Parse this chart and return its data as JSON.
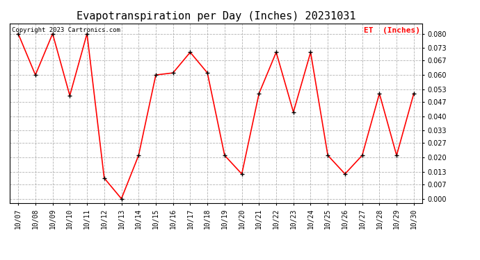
{
  "title": "Evapotranspiration per Day (Inches) 20231031",
  "copyright": "Copyright 2023 Cartronics.com",
  "legend_label": "ET  (Inches)",
  "dates": [
    "10/07",
    "10/08",
    "10/09",
    "10/10",
    "10/11",
    "10/12",
    "10/13",
    "10/14",
    "10/15",
    "10/16",
    "10/17",
    "10/18",
    "10/19",
    "10/20",
    "10/21",
    "10/22",
    "10/23",
    "10/24",
    "10/25",
    "10/26",
    "10/27",
    "10/28",
    "10/29",
    "10/30"
  ],
  "values": [
    0.08,
    0.06,
    0.08,
    0.05,
    0.08,
    0.01,
    0.0,
    0.021,
    0.06,
    0.061,
    0.071,
    0.061,
    0.021,
    0.012,
    0.051,
    0.071,
    0.042,
    0.071,
    0.021,
    0.012,
    0.021,
    0.051,
    0.021,
    0.051
  ],
  "line_color": "red",
  "marker_color": "black",
  "background_color": "white",
  "grid_color": "#aaaaaa",
  "yticks": [
    0.0,
    0.007,
    0.013,
    0.02,
    0.027,
    0.033,
    0.04,
    0.047,
    0.053,
    0.06,
    0.067,
    0.073,
    0.08
  ],
  "ylim": [
    -0.002,
    0.085
  ],
  "title_fontsize": 11,
  "tick_fontsize": 7,
  "copyright_fontsize": 6.5,
  "legend_fontsize": 8
}
